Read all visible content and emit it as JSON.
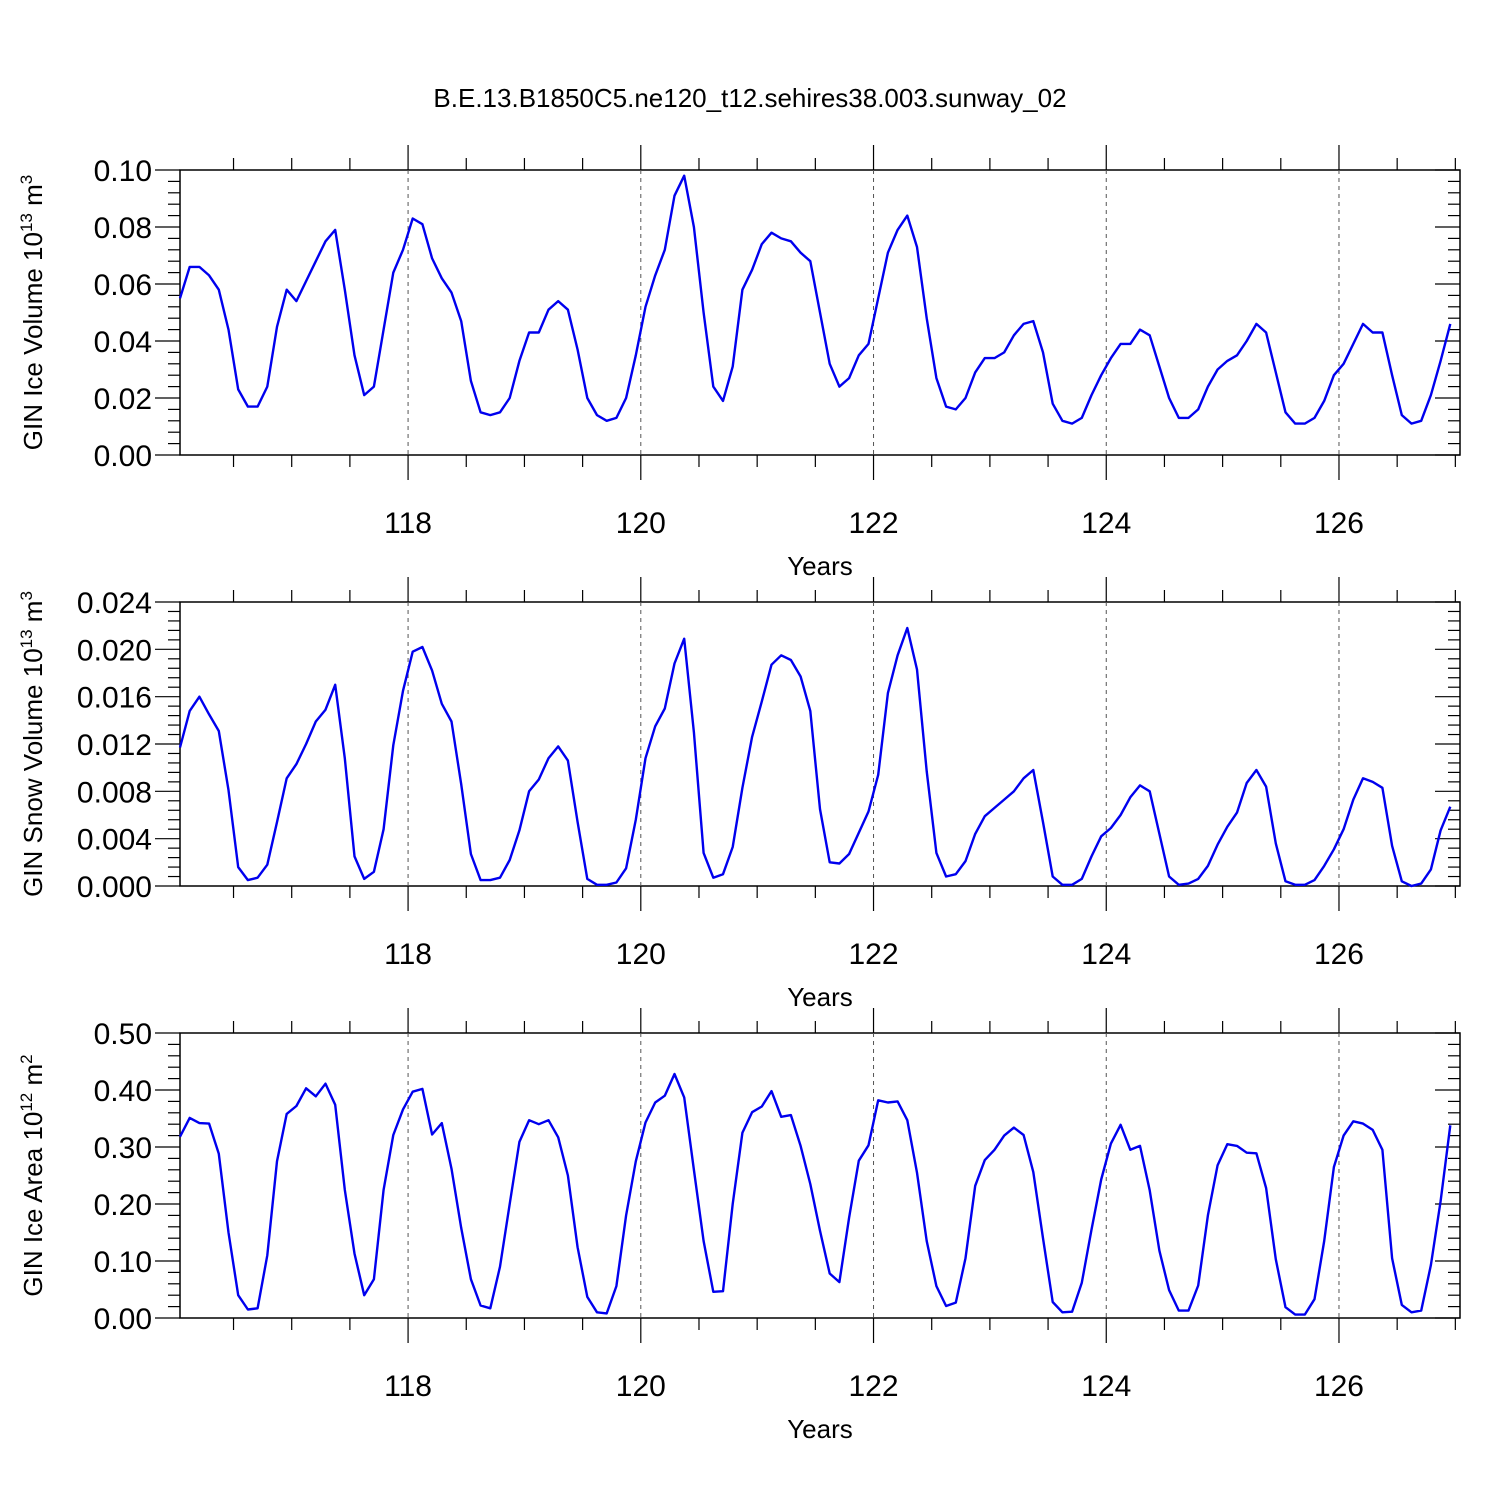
{
  "title": "B.E.13.B1850C5.ne120_t12.sehires38.003.sunway_02",
  "colors": {
    "line": "#0000ee",
    "grid": "#555555"
  },
  "chart_data": [
    {
      "type": "line",
      "ylabel": {
        "base": "GIN Ice Volume 10",
        "exp1": "13",
        "mid": " m",
        "exp2": "3"
      },
      "xlabel": "Years",
      "xlim": [
        116.04,
        127.04
      ],
      "ylim": [
        0.0,
        0.1
      ],
      "yticks": [
        "0.00",
        "0.02",
        "0.04",
        "0.06",
        "0.08",
        "0.10"
      ],
      "xticks": [
        "118",
        "120",
        "122",
        "124",
        "126"
      ],
      "grid": "vertical dashed at labeled years",
      "x_start": 116.04,
      "x_step": 0.0833333,
      "values": [
        0.055,
        0.066,
        0.066,
        0.063,
        0.058,
        0.044,
        0.023,
        0.017,
        0.017,
        0.024,
        0.045,
        0.058,
        0.054,
        0.061,
        0.068,
        0.075,
        0.079,
        0.058,
        0.035,
        0.021,
        0.024,
        0.044,
        0.064,
        0.072,
        0.083,
        0.081,
        0.069,
        0.062,
        0.057,
        0.047,
        0.026,
        0.015,
        0.014,
        0.015,
        0.02,
        0.033,
        0.043,
        0.043,
        0.051,
        0.054,
        0.051,
        0.037,
        0.02,
        0.014,
        0.012,
        0.013,
        0.02,
        0.035,
        0.052,
        0.063,
        0.072,
        0.091,
        0.098,
        0.08,
        0.05,
        0.024,
        0.019,
        0.031,
        0.058,
        0.065,
        0.074,
        0.078,
        0.076,
        0.075,
        0.071,
        0.068,
        0.05,
        0.032,
        0.024,
        0.027,
        0.035,
        0.039,
        0.055,
        0.071,
        0.079,
        0.084,
        0.073,
        0.048,
        0.027,
        0.017,
        0.016,
        0.02,
        0.029,
        0.034,
        0.034,
        0.036,
        0.042,
        0.046,
        0.047,
        0.036,
        0.018,
        0.012,
        0.011,
        0.013,
        0.021,
        0.028,
        0.034,
        0.039,
        0.039,
        0.044,
        0.042,
        0.031,
        0.02,
        0.013,
        0.013,
        0.016,
        0.024,
        0.03,
        0.033,
        0.035,
        0.04,
        0.046,
        0.043,
        0.029,
        0.015,
        0.011,
        0.011,
        0.013,
        0.019,
        0.028,
        0.032,
        0.039,
        0.046,
        0.043,
        0.043,
        0.028,
        0.014,
        0.011,
        0.012,
        0.021,
        0.033,
        0.046
      ]
    },
    {
      "type": "line",
      "ylabel": {
        "base": "GIN Snow Volume 10",
        "exp1": "13",
        "mid": " m",
        "exp2": "3"
      },
      "xlabel": "Years",
      "xlim": [
        116.04,
        127.04
      ],
      "ylim": [
        0.0,
        0.024
      ],
      "yticks": [
        "0.000",
        "0.004",
        "0.008",
        "0.012",
        "0.016",
        "0.020",
        "0.024"
      ],
      "xticks": [
        "118",
        "120",
        "122",
        "124",
        "126"
      ],
      "grid": "vertical dashed at labeled years",
      "x_start": 116.04,
      "x_step": 0.0833333,
      "values": [
        0.0117,
        0.0148,
        0.016,
        0.0145,
        0.0131,
        0.0081,
        0.0016,
        0.0005,
        0.0007,
        0.0018,
        0.0054,
        0.0091,
        0.0103,
        0.012,
        0.0139,
        0.0149,
        0.017,
        0.0108,
        0.0025,
        0.0006,
        0.0012,
        0.0048,
        0.0119,
        0.0165,
        0.0198,
        0.0202,
        0.0182,
        0.0154,
        0.0139,
        0.0086,
        0.0027,
        0.0005,
        0.0005,
        0.0007,
        0.0022,
        0.0047,
        0.008,
        0.009,
        0.0108,
        0.0118,
        0.0106,
        0.0054,
        0.0006,
        0.0001,
        0.0001,
        0.0003,
        0.0015,
        0.0056,
        0.0108,
        0.0135,
        0.015,
        0.0188,
        0.0209,
        0.013,
        0.0028,
        0.0007,
        0.001,
        0.0033,
        0.0083,
        0.0126,
        0.0156,
        0.0187,
        0.0195,
        0.0191,
        0.0177,
        0.0148,
        0.0065,
        0.002,
        0.0019,
        0.0027,
        0.0045,
        0.0063,
        0.0094,
        0.0163,
        0.0195,
        0.0218,
        0.0183,
        0.0097,
        0.0028,
        0.0008,
        0.001,
        0.0021,
        0.0044,
        0.0059,
        0.0066,
        0.0073,
        0.008,
        0.0091,
        0.0098,
        0.0054,
        0.0008,
        0.0001,
        0.0001,
        0.0006,
        0.0025,
        0.0042,
        0.0049,
        0.006,
        0.0075,
        0.0085,
        0.008,
        0.0044,
        0.0008,
        0.0001,
        0.0002,
        0.0006,
        0.0017,
        0.0035,
        0.005,
        0.0062,
        0.0087,
        0.0098,
        0.0084,
        0.0036,
        0.0004,
        0.0001,
        0.0001,
        0.0005,
        0.0017,
        0.0031,
        0.0048,
        0.0073,
        0.0091,
        0.0088,
        0.0083,
        0.0034,
        0.0004,
        0.0,
        0.0002,
        0.0014,
        0.0047,
        0.0067
      ]
    },
    {
      "type": "line",
      "ylabel": {
        "base": "GIN Ice Area 10",
        "exp1": "12",
        "mid": " m",
        "exp2": "2"
      },
      "xlabel": "Years",
      "xlim": [
        116.04,
        127.04
      ],
      "ylim": [
        0.0,
        0.5
      ],
      "yticks": [
        "0.00",
        "0.10",
        "0.20",
        "0.30",
        "0.40",
        "0.50"
      ],
      "xticks": [
        "118",
        "120",
        "122",
        "124",
        "126"
      ],
      "grid": "vertical dashed at labeled years",
      "x_start": 116.04,
      "x_step": 0.0833333,
      "values": [
        0.318,
        0.351,
        0.342,
        0.341,
        0.288,
        0.15,
        0.04,
        0.015,
        0.017,
        0.11,
        0.275,
        0.358,
        0.372,
        0.403,
        0.389,
        0.411,
        0.374,
        0.225,
        0.113,
        0.04,
        0.068,
        0.225,
        0.321,
        0.366,
        0.397,
        0.402,
        0.322,
        0.342,
        0.262,
        0.158,
        0.068,
        0.022,
        0.017,
        0.09,
        0.2,
        0.309,
        0.347,
        0.34,
        0.347,
        0.317,
        0.25,
        0.124,
        0.037,
        0.01,
        0.008,
        0.056,
        0.18,
        0.275,
        0.343,
        0.378,
        0.39,
        0.428,
        0.387,
        0.26,
        0.135,
        0.046,
        0.047,
        0.2,
        0.325,
        0.361,
        0.371,
        0.398,
        0.353,
        0.356,
        0.302,
        0.235,
        0.153,
        0.078,
        0.063,
        0.176,
        0.276,
        0.303,
        0.382,
        0.378,
        0.38,
        0.347,
        0.255,
        0.135,
        0.056,
        0.021,
        0.027,
        0.105,
        0.232,
        0.277,
        0.295,
        0.32,
        0.334,
        0.321,
        0.256,
        0.14,
        0.028,
        0.01,
        0.011,
        0.062,
        0.155,
        0.243,
        0.306,
        0.339,
        0.295,
        0.302,
        0.224,
        0.118,
        0.049,
        0.013,
        0.013,
        0.057,
        0.18,
        0.268,
        0.305,
        0.302,
        0.29,
        0.289,
        0.228,
        0.103,
        0.019,
        0.006,
        0.006,
        0.033,
        0.135,
        0.265,
        0.32,
        0.345,
        0.341,
        0.33,
        0.295,
        0.105,
        0.023,
        0.01,
        0.013,
        0.093,
        0.205,
        0.338
      ]
    }
  ]
}
